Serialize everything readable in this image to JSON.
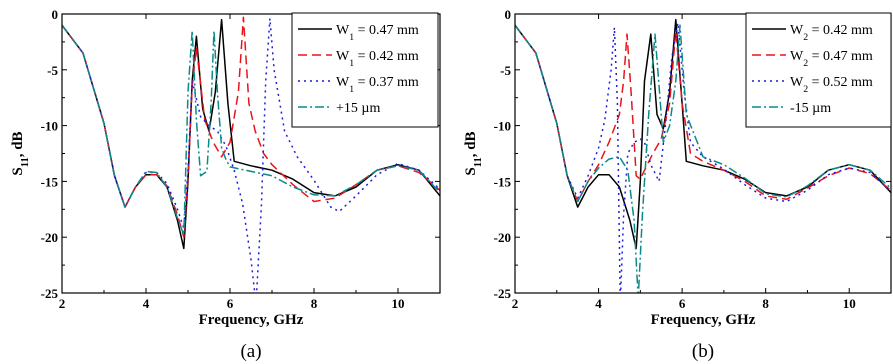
{
  "chart_data": [
    {
      "type": "line",
      "caption": "(a)",
      "xlabel": "Frequency, GHz",
      "ylabel_main": "S",
      "ylabel_sub": "11",
      "ylabel_rest": ", dB",
      "xlim": [
        2,
        11
      ],
      "ylim": [
        -25,
        0
      ],
      "xticks": [
        2,
        4,
        6,
        8,
        10
      ],
      "yticks": [
        0,
        -5,
        -10,
        -15,
        -20,
        -25
      ],
      "grid": false,
      "legend_position": "top-right",
      "series": [
        {
          "name_main": "W",
          "name_sub": "1",
          "name_rest": " = 0.47 mm",
          "color": "#000000",
          "dash": "solid",
          "x": [
            2,
            2.5,
            3,
            3.25,
            3.5,
            3.75,
            4,
            4.25,
            4.5,
            4.75,
            4.9,
            5.0,
            5.1,
            5.2,
            5.35,
            5.5,
            5.65,
            5.8,
            5.95,
            6.1,
            6.5,
            7,
            7.5,
            8,
            8.5,
            9,
            9.5,
            10,
            10.5,
            11
          ],
          "y": [
            -1,
            -3.5,
            -9.8,
            -14.5,
            -17.3,
            -15.5,
            -14.4,
            -14.4,
            -15.5,
            -18.5,
            -21.0,
            -15,
            -6,
            -2.0,
            -8.5,
            -10.5,
            -7,
            -0.5,
            -8,
            -13.2,
            -13.6,
            -14.0,
            -14.8,
            -16.0,
            -16.3,
            -15.5,
            -14.0,
            -13.5,
            -14.0,
            -16.3
          ]
        },
        {
          "name_main": "W",
          "name_sub": "1",
          "name_rest": " = 0.42 mm",
          "color": "#e8141c",
          "dash": "9,5",
          "x": [
            2,
            2.5,
            3,
            3.25,
            3.5,
            3.75,
            4,
            4.25,
            4.5,
            4.75,
            4.9,
            5.0,
            5.1,
            5.2,
            5.4,
            5.6,
            5.8,
            6.0,
            6.2,
            6.32,
            6.45,
            6.6,
            6.8,
            7,
            7.5,
            8,
            8.5,
            9,
            9.5,
            10,
            10.5,
            11
          ],
          "y": [
            -1,
            -3.5,
            -9.8,
            -14.5,
            -17.3,
            -15.5,
            -14.4,
            -14.4,
            -15.4,
            -18.0,
            -20.0,
            -14.5,
            -6.5,
            -3.0,
            -9.5,
            -11.5,
            -12.8,
            -11.5,
            -7,
            -0.3,
            -8,
            -10.5,
            -12.5,
            -13.5,
            -15.3,
            -16.8,
            -16.5,
            -15.3,
            -14.0,
            -13.6,
            -14.2,
            -15.8
          ]
        },
        {
          "name_main": "W",
          "name_sub": "1",
          "name_rest": " = 0.37 mm",
          "color": "#1c1cdc",
          "dash": "2,4",
          "x": [
            2,
            2.5,
            3,
            3.25,
            3.5,
            3.75,
            4,
            4.25,
            4.5,
            4.75,
            4.9,
            5.0,
            5.1,
            5.3,
            5.5,
            5.7,
            5.9,
            6.1,
            6.3,
            6.5,
            6.62,
            6.75,
            6.85,
            6.95,
            7.05,
            7.3,
            7.6,
            8,
            8.4,
            8.6,
            9,
            9.5,
            10,
            10.5,
            11
          ],
          "y": [
            -1,
            -3.5,
            -9.8,
            -14.5,
            -17.3,
            -15.5,
            -14.2,
            -14.2,
            -15.2,
            -17.5,
            -19.2,
            -14.0,
            -6,
            -9.2,
            -10.0,
            -10.5,
            -11.8,
            -14,
            -17,
            -22,
            -26,
            -17,
            -6,
            -0.4,
            -5,
            -10.5,
            -12.8,
            -14.9,
            -17.3,
            -17.7,
            -16.3,
            -14.4,
            -13.4,
            -14.0,
            -15.7
          ]
        },
        {
          "name_main": "",
          "name_sub": "",
          "name_rest": "+15 µm",
          "color": "#0b8a8a",
          "dash": "9,3,2,3",
          "x": [
            2,
            2.5,
            3,
            3.25,
            3.5,
            3.75,
            4,
            4.25,
            4.5,
            4.75,
            4.9,
            5.0,
            5.1,
            5.2,
            5.3,
            5.45,
            5.55,
            5.62,
            5.7,
            5.8,
            5.9,
            6.0,
            6.5,
            7,
            7.5,
            8,
            8.5,
            9,
            9.5,
            10,
            10.5,
            11
          ],
          "y": [
            -1,
            -3.5,
            -9.8,
            -14.5,
            -17.3,
            -15.5,
            -14.1,
            -14.2,
            -15.5,
            -18.3,
            -19.8,
            -7,
            -1.5,
            -9.5,
            -14.5,
            -14.1,
            -8,
            -1.5,
            -7,
            -12.0,
            -13.0,
            -13.7,
            -14.1,
            -14.5,
            -15.5,
            -16.2,
            -16.3,
            -15.3,
            -14.0,
            -13.6,
            -14.0,
            -16.0
          ]
        }
      ]
    },
    {
      "type": "line",
      "caption": "(b)",
      "xlabel": "Frequency, GHz",
      "ylabel_main": "S",
      "ylabel_sub": "11",
      "ylabel_rest": ", dB",
      "xlim": [
        2,
        11
      ],
      "ylim": [
        -25,
        0
      ],
      "xticks": [
        2,
        4,
        6,
        8,
        10
      ],
      "yticks": [
        0,
        -5,
        -10,
        -15,
        -20,
        -25
      ],
      "grid": false,
      "legend_position": "top-right",
      "series": [
        {
          "name_main": "W",
          "name_sub": "2",
          "name_rest": " = 0.42 mm",
          "color": "#000000",
          "dash": "solid",
          "x": [
            2,
            2.5,
            3,
            3.25,
            3.5,
            3.75,
            4,
            4.25,
            4.5,
            4.75,
            4.9,
            5.0,
            5.1,
            5.25,
            5.4,
            5.55,
            5.7,
            5.85,
            6.0,
            6.1,
            6.5,
            7,
            7.5,
            8,
            8.5,
            9,
            9.5,
            10,
            10.5,
            11
          ],
          "y": [
            -1,
            -3.5,
            -9.8,
            -14.5,
            -17.3,
            -15.5,
            -14.4,
            -14.4,
            -15.5,
            -18.5,
            -21.0,
            -15,
            -6,
            -1.8,
            -9,
            -10.3,
            -7,
            -0.5,
            -8,
            -13.2,
            -13.6,
            -14.0,
            -14.8,
            -16.0,
            -16.3,
            -15.5,
            -14.0,
            -13.5,
            -14.0,
            -16.0
          ]
        },
        {
          "name_main": "W",
          "name_sub": "2",
          "name_rest": " = 0.47 mm",
          "color": "#e8141c",
          "dash": "9,5",
          "x": [
            2,
            2.5,
            3,
            3.25,
            3.5,
            3.75,
            4,
            4.25,
            4.5,
            4.6,
            4.68,
            4.78,
            4.9,
            5.0,
            5.1,
            5.3,
            5.5,
            5.7,
            5.85,
            6.0,
            6.2,
            6.5,
            7,
            7.5,
            8,
            8.5,
            9,
            9.5,
            10,
            10.5,
            11
          ],
          "y": [
            -1,
            -3.5,
            -9.8,
            -14.5,
            -16.8,
            -15.0,
            -13.5,
            -11.5,
            -9.0,
            -6,
            -1.8,
            -7,
            -14.5,
            -14.8,
            -14.0,
            -12.5,
            -11.2,
            -8,
            -1.5,
            -8,
            -12.5,
            -13.2,
            -14.0,
            -15.0,
            -16.3,
            -16.6,
            -15.6,
            -14.5,
            -13.8,
            -14.3,
            -15.8
          ]
        },
        {
          "name_main": "W",
          "name_sub": "2",
          "name_rest": " = 0.52 mm",
          "color": "#1c1cdc",
          "dash": "2,4",
          "x": [
            2,
            2.5,
            3,
            3.25,
            3.5,
            3.75,
            4,
            4.15,
            4.3,
            4.38,
            4.45,
            4.52,
            4.6,
            4.7,
            4.85,
            5.0,
            5.1,
            5.25,
            5.45,
            5.6,
            5.75,
            5.9,
            6.05,
            6.2,
            6.5,
            7,
            7.5,
            8,
            8.5,
            9,
            9.5,
            10,
            10.5,
            11
          ],
          "y": [
            -1,
            -3.5,
            -9.8,
            -14.5,
            -16.5,
            -14.5,
            -12.0,
            -9.5,
            -5,
            -1.2,
            -8,
            -26,
            -18,
            -12.5,
            -11.5,
            -11.2,
            -11.5,
            -13.5,
            -15.0,
            -10,
            -4,
            -0.8,
            -7,
            -11.5,
            -12.8,
            -13.9,
            -15.3,
            -16.5,
            -16.8,
            -15.8,
            -14.4,
            -13.8,
            -14.2,
            -15.9
          ]
        },
        {
          "name_main": "",
          "name_sub": "",
          "name_rest": "-15 µm",
          "color": "#0b8a8a",
          "dash": "9,3,2,3",
          "x": [
            2,
            2.5,
            3,
            3.25,
            3.5,
            3.75,
            4,
            4.25,
            4.5,
            4.7,
            4.85,
            4.95,
            5.05,
            5.2,
            5.35,
            5.45,
            5.55,
            5.7,
            5.85,
            5.95,
            6.1,
            6.5,
            7,
            7.5,
            8,
            8.5,
            9,
            9.5,
            10,
            10.5,
            11
          ],
          "y": [
            -1,
            -3.5,
            -9.8,
            -14.5,
            -16.8,
            -15.0,
            -13.8,
            -13.0,
            -12.8,
            -14.0,
            -18.5,
            -25.5,
            -18,
            -9,
            -1.8,
            -6.5,
            -11.5,
            -10.0,
            -6,
            -1.0,
            -9,
            -12.8,
            -13.5,
            -14.7,
            -16.1,
            -16.4,
            -15.4,
            -14.0,
            -13.5,
            -14.0,
            -15.6
          ]
        }
      ]
    }
  ]
}
